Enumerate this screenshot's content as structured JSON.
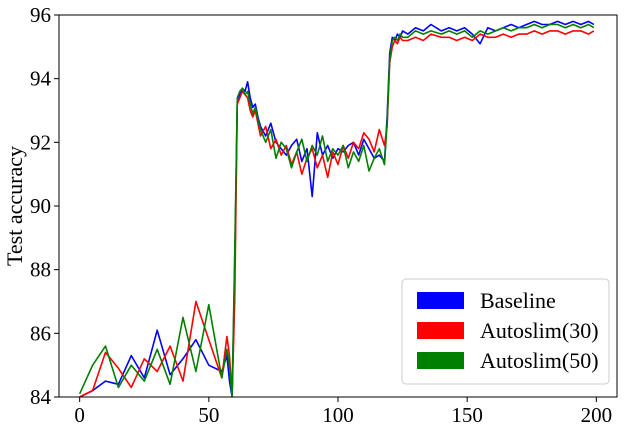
{
  "chart_data": {
    "type": "line",
    "title": "",
    "xlabel": "",
    "ylabel": "Test accuracy",
    "xlim": [
      -8,
      208
    ],
    "ylim": [
      84,
      96
    ],
    "xticks": [
      "0",
      "50",
      "100",
      "150",
      "200"
    ],
    "yticks": [
      "84",
      "86",
      "88",
      "90",
      "92",
      "94",
      "96"
    ],
    "grid": false,
    "legend_position": "bottom-right",
    "legend_style": "color-patches",
    "x": [
      0,
      5,
      10,
      15,
      20,
      25,
      30,
      35,
      40,
      45,
      50,
      55,
      57,
      58,
      59,
      60,
      61,
      62,
      63,
      64,
      65,
      66,
      67,
      68,
      69,
      70,
      72,
      74,
      76,
      78,
      80,
      82,
      84,
      86,
      88,
      90,
      92,
      94,
      96,
      98,
      100,
      102,
      104,
      106,
      108,
      110,
      112,
      114,
      116,
      118,
      119,
      120,
      121,
      122,
      123,
      124,
      125,
      127,
      130,
      133,
      136,
      140,
      143,
      146,
      149,
      152,
      155,
      158,
      161,
      164,
      167,
      170,
      173,
      176,
      179,
      182,
      185,
      188,
      191,
      194,
      197,
      199
    ],
    "series": [
      {
        "name": "Baseline",
        "color": "#0000ff",
        "values": [
          84,
          84.2,
          84.5,
          84.4,
          85.3,
          84.6,
          86.1,
          84.7,
          85.2,
          85.8,
          85.0,
          84.8,
          85.3,
          84.5,
          84.0,
          88.0,
          93.3,
          93.5,
          93.7,
          93.6,
          93.9,
          93.4,
          93.1,
          93.2,
          92.8,
          92.5,
          92.2,
          92.6,
          92.0,
          91.8,
          91.6,
          91.9,
          92.1,
          91.4,
          91.8,
          90.3,
          92.3,
          91.6,
          91.9,
          91.5,
          91.8,
          91.7,
          91.9,
          92.0,
          91.6,
          92.1,
          91.8,
          91.5,
          91.6,
          91.4,
          92.8,
          94.8,
          95.3,
          95.2,
          95.4,
          95.3,
          95.5,
          95.4,
          95.6,
          95.5,
          95.7,
          95.5,
          95.6,
          95.5,
          95.6,
          95.4,
          95.1,
          95.6,
          95.5,
          95.6,
          95.7,
          95.6,
          95.7,
          95.8,
          95.7,
          95.7,
          95.8,
          95.7,
          95.8,
          95.7,
          95.8,
          95.7
        ]
      },
      {
        "name": "Autoslim(30)",
        "color": "#ff0000",
        "values": [
          84,
          84.2,
          85.4,
          84.9,
          84.3,
          85.2,
          84.8,
          85.6,
          84.5,
          87.0,
          85.8,
          84.6,
          85.9,
          85.3,
          84.0,
          87.0,
          93.2,
          93.4,
          93.6,
          93.5,
          93.4,
          93.0,
          92.8,
          93.0,
          92.6,
          92.2,
          92.5,
          91.8,
          92.1,
          91.6,
          91.9,
          91.3,
          91.7,
          91.0,
          91.5,
          91.8,
          91.2,
          91.6,
          90.9,
          91.7,
          91.3,
          91.9,
          91.5,
          92.0,
          91.8,
          92.3,
          92.1,
          91.7,
          92.4,
          91.9,
          92.5,
          94.5,
          95.0,
          95.2,
          95.1,
          95.3,
          95.2,
          95.2,
          95.3,
          95.2,
          95.4,
          95.3,
          95.3,
          95.2,
          95.3,
          95.2,
          95.4,
          95.3,
          95.3,
          95.4,
          95.3,
          95.4,
          95.4,
          95.5,
          95.4,
          95.5,
          95.5,
          95.4,
          95.5,
          95.5,
          95.4,
          95.5
        ]
      },
      {
        "name": "Autoslim(50)",
        "color": "#008000",
        "values": [
          84.1,
          85.0,
          85.6,
          84.3,
          85.0,
          84.5,
          85.5,
          84.4,
          86.5,
          84.8,
          86.9,
          84.6,
          85.5,
          85.0,
          84.0,
          88.5,
          93.4,
          93.6,
          93.7,
          93.5,
          93.6,
          93.2,
          92.9,
          93.1,
          92.7,
          92.4,
          92.0,
          92.4,
          91.5,
          92.0,
          91.8,
          91.2,
          91.7,
          92.1,
          91.4,
          91.9,
          91.6,
          92.2,
          91.4,
          91.8,
          91.6,
          91.9,
          91.2,
          91.7,
          91.4,
          91.9,
          91.1,
          91.5,
          91.8,
          91.3,
          92.6,
          94.6,
          95.2,
          95.3,
          95.2,
          95.4,
          95.3,
          95.3,
          95.5,
          95.4,
          95.5,
          95.4,
          95.5,
          95.4,
          95.5,
          95.3,
          95.5,
          95.4,
          95.5,
          95.6,
          95.5,
          95.6,
          95.6,
          95.7,
          95.6,
          95.7,
          95.7,
          95.6,
          95.7,
          95.6,
          95.7,
          95.6
        ]
      }
    ]
  }
}
